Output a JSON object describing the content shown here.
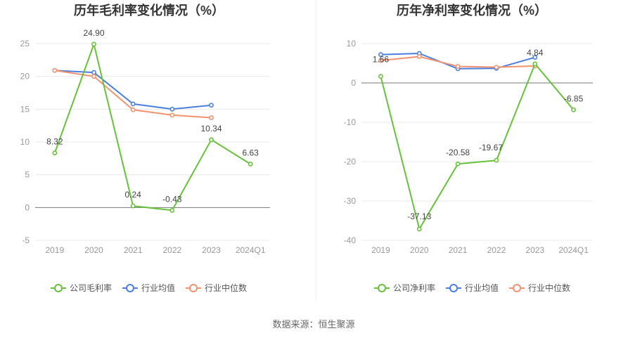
{
  "colors": {
    "company": "#67c23a",
    "industry_avg": "#4a7fe0",
    "industry_median": "#f4926f"
  },
  "source": "数据来源：恒生聚源",
  "chart_data": [
    {
      "type": "line",
      "title": "历年毛利率变化情况（%）",
      "categories": [
        "2019",
        "2020",
        "2021",
        "2022",
        "2023",
        "2024Q1"
      ],
      "ylim": [
        -5,
        25
      ],
      "yticks": [
        -5,
        0,
        5,
        10,
        15,
        20,
        25
      ],
      "grid": true,
      "legend_position": "bottom",
      "series": [
        {
          "name": "公司毛利率",
          "color": "#67c23a",
          "values": [
            8.32,
            24.9,
            0.24,
            -0.43,
            10.34,
            6.63
          ],
          "labels": [
            "8.32",
            "24.90",
            "0.24",
            "-0.43",
            "10.34",
            "6.63"
          ]
        },
        {
          "name": "行业均值",
          "color": "#4a7fe0",
          "values": [
            20.9,
            20.6,
            15.8,
            15.0,
            15.6,
            null
          ]
        },
        {
          "name": "行业中位数",
          "color": "#f4926f",
          "values": [
            20.9,
            20.0,
            14.9,
            14.1,
            13.7,
            null
          ]
        }
      ]
    },
    {
      "type": "line",
      "title": "历年净利率变化情况（%）",
      "categories": [
        "2019",
        "2020",
        "2021",
        "2022",
        "2023",
        "2024Q1"
      ],
      "ylim": [
        -40,
        10
      ],
      "yticks": [
        -40,
        -30,
        -20,
        -10,
        0,
        10
      ],
      "grid": true,
      "legend_position": "bottom",
      "series": [
        {
          "name": "公司净利率",
          "color": "#67c23a",
          "values": [
            1.66,
            -37.13,
            -20.58,
            -19.67,
            4.84,
            -6.85
          ],
          "labels": [
            "1.66",
            "-37.13",
            "-20.58",
            "-19.67",
            "4.84",
            "-6.85"
          ]
        },
        {
          "name": "行业均值",
          "color": "#4a7fe0",
          "values": [
            7.2,
            7.5,
            3.6,
            3.7,
            6.5,
            null
          ]
        },
        {
          "name": "行业中位数",
          "color": "#f4926f",
          "values": [
            5.7,
            6.7,
            4.2,
            4.0,
            4.3,
            null
          ]
        }
      ]
    }
  ]
}
